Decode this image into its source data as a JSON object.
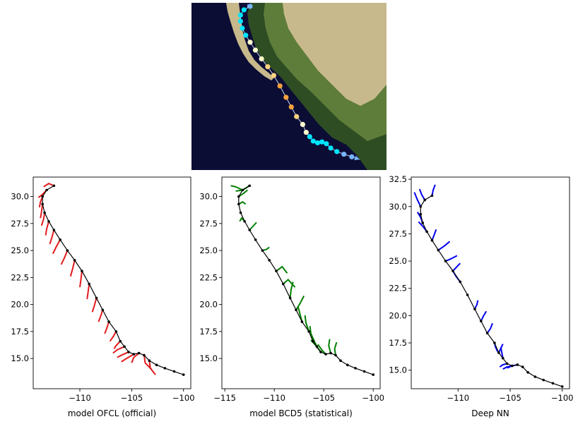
{
  "chart_data": [
    {
      "type": "map",
      "colors": {
        "ocean": "#0b0d35",
        "land_light": "#c8b98c",
        "land_green": "#5e7d3a",
        "land_dark": "#2f4d22",
        "track_line": "#c8d8f0"
      },
      "track_points": [
        {
          "lon": -100.0,
          "lat": 13.5,
          "color": "#79b4ff"
        },
        {
          "lon": -100.9,
          "lat": 13.8,
          "color": "#79b4ff"
        },
        {
          "lon": -101.8,
          "lat": 14.1,
          "color": "#79b4ff"
        },
        {
          "lon": -102.6,
          "lat": 14.4,
          "color": "#00e5ff"
        },
        {
          "lon": -103.3,
          "lat": 14.8,
          "color": "#00e5ff"
        },
        {
          "lon": -103.8,
          "lat": 15.3,
          "color": "#00e5ff"
        },
        {
          "lon": -104.3,
          "lat": 15.5,
          "color": "#00e5ff"
        },
        {
          "lon": -104.8,
          "lat": 15.4,
          "color": "#00e5ff"
        },
        {
          "lon": -105.3,
          "lat": 15.6,
          "color": "#00e5ff"
        },
        {
          "lon": -105.7,
          "lat": 16.1,
          "color": "#00e5ff"
        },
        {
          "lon": -106.1,
          "lat": 16.6,
          "color": "#ffffcc"
        },
        {
          "lon": -106.5,
          "lat": 17.5,
          "color": "#ffffcc"
        },
        {
          "lon": -107.2,
          "lat": 18.4,
          "color": "#ffd27f"
        },
        {
          "lon": -107.8,
          "lat": 19.5,
          "color": "#f7a13b"
        },
        {
          "lon": -108.4,
          "lat": 20.6,
          "color": "#f7a13b"
        },
        {
          "lon": -109.1,
          "lat": 21.9,
          "color": "#f7a13b"
        },
        {
          "lon": -109.8,
          "lat": 23.1,
          "color": "#ffd27f"
        },
        {
          "lon": -110.5,
          "lat": 24.1,
          "color": "#ffd27f"
        },
        {
          "lon": -111.2,
          "lat": 25.0,
          "color": "#ffffcc"
        },
        {
          "lon": -111.9,
          "lat": 26.0,
          "color": "#ffffcc"
        },
        {
          "lon": -112.5,
          "lat": 26.9,
          "color": "#ffffcc"
        },
        {
          "lon": -113.0,
          "lat": 27.7,
          "color": "#00e5ff"
        },
        {
          "lon": -113.4,
          "lat": 28.5,
          "color": "#00e5ff"
        },
        {
          "lon": -113.6,
          "lat": 29.3,
          "color": "#00e5ff"
        },
        {
          "lon": -113.6,
          "lat": 30.0,
          "color": "#00e5ff"
        },
        {
          "lon": -113.2,
          "lat": 30.6,
          "color": "#00e5ff"
        },
        {
          "lon": -112.5,
          "lat": 31.0,
          "color": "#79b4ff"
        }
      ]
    },
    {
      "type": "line",
      "xlabel": "model OFCL (official)",
      "xlim": [
        -114.5,
        -99.3
      ],
      "ylim": [
        12.2,
        31.8
      ],
      "xticks": [
        -110,
        -105,
        -100
      ],
      "yticks": [
        15.0,
        17.5,
        20.0,
        22.5,
        25.0,
        27.5,
        30.0
      ],
      "color": "#e31a1c",
      "series": [
        {
          "x": [
            -100.0,
            -100.9,
            -101.8,
            -102.6,
            -103.3,
            -103.8,
            -104.3,
            -104.8,
            -105.3,
            -105.7,
            -106.1,
            -106.5,
            -107.2,
            -107.8,
            -108.4,
            -109.1,
            -109.8,
            -110.5,
            -111.2,
            -111.9,
            -112.5,
            -113.0,
            -113.4,
            -113.6,
            -113.6,
            -113.2,
            -112.5
          ],
          "y": [
            13.5,
            13.8,
            14.1,
            14.4,
            14.8,
            15.3,
            15.5,
            15.4,
            15.6,
            16.1,
            16.6,
            17.5,
            18.4,
            19.5,
            20.6,
            21.9,
            23.1,
            24.1,
            25.0,
            26.0,
            26.9,
            27.7,
            28.5,
            29.3,
            30.0,
            30.6,
            31.0
          ]
        }
      ],
      "forecasts": [
        {
          "x": [
            -103.3,
            -103.2,
            -102.7
          ],
          "y": [
            14.8,
            14.1,
            13.5
          ]
        },
        {
          "x": [
            -103.8,
            -103.7,
            -103.1
          ],
          "y": [
            15.3,
            14.6,
            14.0
          ]
        },
        {
          "x": [
            -104.3,
            -104.8,
            -105.0
          ],
          "y": [
            15.5,
            15.1,
            14.6
          ]
        },
        {
          "x": [
            -104.8,
            -105.5,
            -106.0
          ],
          "y": [
            15.4,
            15.0,
            14.7
          ]
        },
        {
          "x": [
            -105.3,
            -106.0,
            -106.4
          ],
          "y": [
            15.6,
            15.3,
            15.1
          ]
        },
        {
          "x": [
            -105.7,
            -106.4,
            -106.8
          ],
          "y": [
            16.1,
            15.8,
            15.5
          ]
        },
        {
          "x": [
            -106.1,
            -106.5,
            -106.7
          ],
          "y": [
            16.6,
            16.2,
            15.9
          ]
        },
        {
          "x": [
            -106.5,
            -106.8,
            -107.1
          ],
          "y": [
            17.5,
            17.0,
            16.6
          ]
        },
        {
          "x": [
            -107.2,
            -107.4,
            -107.6
          ],
          "y": [
            18.4,
            17.8,
            17.3
          ]
        },
        {
          "x": [
            -107.8,
            -108.0,
            -108.2
          ],
          "y": [
            19.5,
            18.9,
            18.4
          ]
        },
        {
          "x": [
            -108.4,
            -108.6,
            -108.8
          ],
          "y": [
            20.6,
            19.9,
            19.3
          ]
        },
        {
          "x": [
            -109.1,
            -109.2,
            -109.3
          ],
          "y": [
            21.9,
            21.2,
            20.5
          ]
        },
        {
          "x": [
            -109.8,
            -109.9,
            -110.0
          ],
          "y": [
            23.1,
            22.3,
            21.6
          ]
        },
        {
          "x": [
            -110.5,
            -110.7,
            -110.9
          ],
          "y": [
            24.1,
            23.3,
            22.6
          ]
        },
        {
          "x": [
            -111.2,
            -111.5,
            -111.8
          ],
          "y": [
            25.0,
            24.3,
            23.7
          ]
        },
        {
          "x": [
            -111.9,
            -112.3,
            -112.6
          ],
          "y": [
            26.0,
            25.3,
            24.7
          ]
        },
        {
          "x": [
            -112.5,
            -112.7,
            -112.9
          ],
          "y": [
            26.9,
            26.2,
            25.6
          ]
        },
        {
          "x": [
            -113.0,
            -113.2,
            -113.3
          ],
          "y": [
            27.7,
            27.0,
            26.4
          ]
        },
        {
          "x": [
            -113.4,
            -113.5,
            -113.7
          ],
          "y": [
            28.5,
            27.9,
            27.3
          ]
        },
        {
          "x": [
            -113.6,
            -113.7,
            -113.8
          ],
          "y": [
            29.3,
            28.6,
            28.0
          ]
        },
        {
          "x": [
            -113.6,
            -113.8,
            -113.9
          ],
          "y": [
            30.0,
            29.5,
            29.0
          ]
        },
        {
          "x": [
            -113.2,
            -113.6,
            -114.0
          ],
          "y": [
            30.6,
            30.2,
            29.9
          ]
        },
        {
          "x": [
            -112.5,
            -113.0,
            -113.5
          ],
          "y": [
            31.0,
            31.2,
            30.9
          ]
        }
      ]
    },
    {
      "type": "line",
      "xlabel": "model BCD5 (statistical)",
      "xlim": [
        -115.3,
        -99.3
      ],
      "ylim": [
        12.2,
        31.8
      ],
      "xticks": [
        -115,
        -110,
        -105,
        -100
      ],
      "yticks": [
        15.0,
        17.5,
        20.0,
        22.5,
        25.0,
        27.5,
        30.0
      ],
      "color": "#008000",
      "series": [
        {
          "x": [
            -100.0,
            -100.9,
            -101.8,
            -102.6,
            -103.3,
            -103.8,
            -104.3,
            -104.8,
            -105.3,
            -105.7,
            -106.1,
            -106.5,
            -107.2,
            -107.8,
            -108.4,
            -109.1,
            -109.8,
            -110.5,
            -111.2,
            -111.9,
            -112.5,
            -113.0,
            -113.4,
            -113.6,
            -113.6,
            -113.2,
            -112.5
          ],
          "y": [
            13.5,
            13.8,
            14.1,
            14.4,
            14.8,
            15.3,
            15.5,
            15.4,
            15.6,
            16.1,
            16.6,
            17.5,
            18.4,
            19.5,
            20.6,
            21.9,
            23.1,
            24.1,
            25.0,
            26.0,
            26.9,
            27.7,
            28.5,
            29.3,
            30.0,
            30.6,
            31.0
          ]
        }
      ],
      "forecasts": [
        {
          "x": [
            -103.8,
            -103.9,
            -103.7
          ],
          "y": [
            15.3,
            15.9,
            16.5
          ]
        },
        {
          "x": [
            -104.3,
            -104.5,
            -104.4
          ],
          "y": [
            15.5,
            16.2,
            16.8
          ]
        },
        {
          "x": [
            -104.8,
            -105.2,
            -105.6
          ],
          "y": [
            15.4,
            15.8,
            16.3
          ]
        },
        {
          "x": [
            -105.3,
            -105.8,
            -106.3
          ],
          "y": [
            15.6,
            16.2,
            16.7
          ]
        },
        {
          "x": [
            -105.7,
            -106.0,
            -106.3
          ],
          "y": [
            16.1,
            16.7,
            17.3
          ]
        },
        {
          "x": [
            -106.1,
            -106.3,
            -106.4
          ],
          "y": [
            16.6,
            17.3,
            18.0
          ]
        },
        {
          "x": [
            -106.5,
            -106.8,
            -106.9
          ],
          "y": [
            17.5,
            18.3,
            19.0
          ]
        },
        {
          "x": [
            -107.2,
            -107.4,
            -107.6
          ],
          "y": [
            18.4,
            19.1,
            19.8
          ]
        },
        {
          "x": [
            -107.8,
            -107.4,
            -107.0
          ],
          "y": [
            19.5,
            20.1,
            20.8
          ]
        },
        {
          "x": [
            -108.4,
            -108.3,
            -108.1
          ],
          "y": [
            20.6,
            21.4,
            22.1
          ]
        },
        {
          "x": [
            -109.1,
            -108.6,
            -107.9
          ],
          "y": [
            21.9,
            22.3,
            21.6
          ]
        },
        {
          "x": [
            -109.8,
            -109.2,
            -108.7
          ],
          "y": [
            23.1,
            23.5,
            22.9
          ]
        },
        {
          "x": [
            -111.2,
            -110.8,
            -110.5
          ],
          "y": [
            25.0,
            25.1,
            25.3
          ]
        },
        {
          "x": [
            -112.5,
            -112.1,
            -111.8
          ],
          "y": [
            26.9,
            27.3,
            27.6
          ]
        },
        {
          "x": [
            -113.0,
            -113.3,
            -113.5
          ],
          "y": [
            27.7,
            28.0,
            27.7
          ]
        },
        {
          "x": [
            -113.6,
            -113.2,
            -112.9
          ],
          "y": [
            29.3,
            29.5,
            29.3
          ]
        },
        {
          "x": [
            -113.6,
            -113.1,
            -112.7
          ],
          "y": [
            30.0,
            30.3,
            30.6
          ]
        },
        {
          "x": [
            -113.2,
            -113.9,
            -114.4
          ],
          "y": [
            30.6,
            30.9,
            31.0
          ]
        },
        {
          "x": [
            -112.5,
            -113.2,
            -113.9
          ],
          "y": [
            31.0,
            30.6,
            30.5
          ]
        }
      ]
    },
    {
      "type": "line",
      "xlabel": "Deep NN",
      "xlim": [
        -114.5,
        -99.3
      ],
      "ylim": [
        13.3,
        32.7
      ],
      "xticks": [
        -110,
        -105,
        -100
      ],
      "yticks": [
        15.0,
        17.5,
        20.0,
        22.5,
        25.0,
        27.5,
        30.0,
        32.5
      ],
      "color": "#0000ee",
      "series": [
        {
          "x": [
            -100.0,
            -100.9,
            -101.8,
            -102.6,
            -103.3,
            -103.8,
            -104.3,
            -104.8,
            -105.3,
            -105.7,
            -106.1,
            -106.5,
            -107.2,
            -107.8,
            -108.4,
            -109.1,
            -109.8,
            -110.5,
            -111.2,
            -111.9,
            -112.5,
            -113.0,
            -113.4,
            -113.6,
            -113.6,
            -113.2,
            -112.5
          ],
          "y": [
            13.5,
            13.8,
            14.1,
            14.4,
            14.8,
            15.3,
            15.5,
            15.4,
            15.6,
            16.1,
            16.6,
            17.5,
            18.4,
            19.5,
            20.6,
            21.9,
            23.1,
            24.1,
            25.0,
            26.0,
            26.9,
            27.7,
            28.5,
            29.3,
            30.0,
            30.6,
            31.0
          ]
        }
      ],
      "forecasts": [
        {
          "x": [
            -104.3,
            -104.8,
            -105.3
          ],
          "y": [
            15.5,
            15.4,
            15.2
          ]
        },
        {
          "x": [
            -104.8,
            -105.3,
            -105.7
          ],
          "y": [
            15.4,
            15.3,
            15.1
          ]
        },
        {
          "x": [
            -105.3,
            -105.7,
            -106.0
          ],
          "y": [
            15.6,
            15.5,
            15.3
          ]
        },
        {
          "x": [
            -105.7,
            -105.8,
            -105.9
          ],
          "y": [
            16.1,
            16.6,
            17.1
          ]
        },
        {
          "x": [
            -106.1,
            -105.9,
            -105.7
          ],
          "y": [
            16.6,
            17.0,
            17.4
          ]
        },
        {
          "x": [
            -106.5,
            -106.4,
            -106.2
          ],
          "y": [
            17.5,
            17.1,
            16.7
          ]
        },
        {
          "x": [
            -107.2,
            -106.9,
            -106.7
          ],
          "y": [
            18.4,
            18.8,
            19.3
          ]
        },
        {
          "x": [
            -107.8,
            -107.6,
            -107.3
          ],
          "y": [
            19.5,
            19.9,
            20.4
          ]
        },
        {
          "x": [
            -108.4,
            -108.2,
            -108.1
          ],
          "y": [
            20.6,
            21.0,
            21.4
          ]
        },
        {
          "x": [
            -109.8,
            -110.2,
            -110.5
          ],
          "y": [
            23.1,
            23.6,
            24.1
          ]
        },
        {
          "x": [
            -110.5,
            -110.1,
            -109.8
          ],
          "y": [
            24.1,
            24.5,
            24.8
          ]
        },
        {
          "x": [
            -111.2,
            -110.7,
            -110.1
          ],
          "y": [
            25.0,
            25.2,
            25.5
          ]
        },
        {
          "x": [
            -111.9,
            -111.3,
            -110.8
          ],
          "y": [
            26.0,
            26.4,
            26.8
          ]
        },
        {
          "x": [
            -112.5,
            -112.3,
            -112.1
          ],
          "y": [
            26.9,
            27.4,
            27.9
          ]
        },
        {
          "x": [
            -113.0,
            -113.4,
            -113.8
          ],
          "y": [
            27.7,
            28.2,
            28.6
          ]
        },
        {
          "x": [
            -113.4,
            -113.6,
            -113.9
          ],
          "y": [
            28.5,
            29.0,
            29.5
          ]
        },
        {
          "x": [
            -113.6,
            -113.9,
            -114.2
          ],
          "y": [
            30.0,
            30.6,
            31.3
          ]
        },
        {
          "x": [
            -113.2,
            -113.5,
            -113.7
          ],
          "y": [
            30.6,
            31.1,
            31.6
          ]
        },
        {
          "x": [
            -112.5,
            -112.4,
            -112.2
          ],
          "y": [
            31.0,
            31.5,
            32.0
          ]
        }
      ]
    }
  ]
}
